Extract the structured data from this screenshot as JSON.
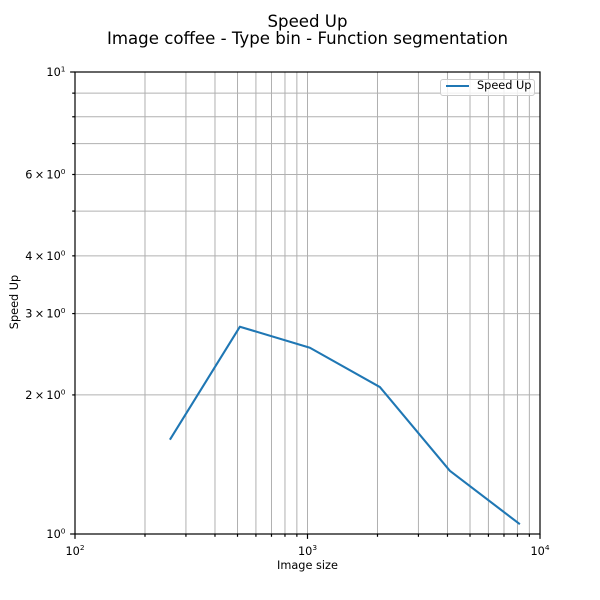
{
  "title": {
    "line1": "Speed Up",
    "line2": "Image coffee - Type bin - Function segmentation"
  },
  "legend": {
    "label": "Speed Up"
  },
  "chart_data": {
    "type": "line",
    "title": "Speed Up",
    "subtitle": "Image coffee - Type bin - Function segmentation",
    "xlabel": "Image size",
    "ylabel": "Speed Up",
    "x_scale": "log",
    "y_scale": "log",
    "xlim": [
      100,
      10000
    ],
    "ylim": [
      1,
      10
    ],
    "grid": {
      "enabled": true,
      "which": "both",
      "color": "#b0b0b0"
    },
    "legend_position": "upper right",
    "series": [
      {
        "name": "Speed Up",
        "color": "#1f77b4",
        "x": [
          256,
          512,
          1024,
          2048,
          4096,
          8192
        ],
        "y": [
          1.6,
          2.81,
          2.53,
          2.08,
          1.37,
          1.05
        ]
      }
    ],
    "x_ticks": {
      "major": [
        {
          "value": 100,
          "label": "10^2"
        },
        {
          "value": 1000,
          "label": "10^3"
        },
        {
          "value": 10000,
          "label": "10^4"
        }
      ],
      "minor": [
        200,
        300,
        400,
        500,
        600,
        700,
        800,
        900,
        2000,
        3000,
        4000,
        5000,
        6000,
        7000,
        8000,
        9000
      ]
    },
    "y_ticks": {
      "major": [
        {
          "value": 1,
          "label": "10^0"
        },
        {
          "value": 10,
          "label": "10^1"
        }
      ],
      "minor": [
        {
          "value": 2,
          "label": "2 × 10^0"
        },
        {
          "value": 3,
          "label": "3 × 10^0"
        },
        {
          "value": 4,
          "label": "4 × 10^0"
        },
        {
          "value": 5
        },
        {
          "value": 6,
          "label": "6 × 10^0"
        },
        {
          "value": 7
        },
        {
          "value": 8
        },
        {
          "value": 9
        }
      ]
    },
    "colors": {
      "line": "#1f77b4",
      "grid": "#b0b0b0",
      "spine": "#000000",
      "text": "#000000",
      "legend_border": "#cccccc"
    }
  }
}
